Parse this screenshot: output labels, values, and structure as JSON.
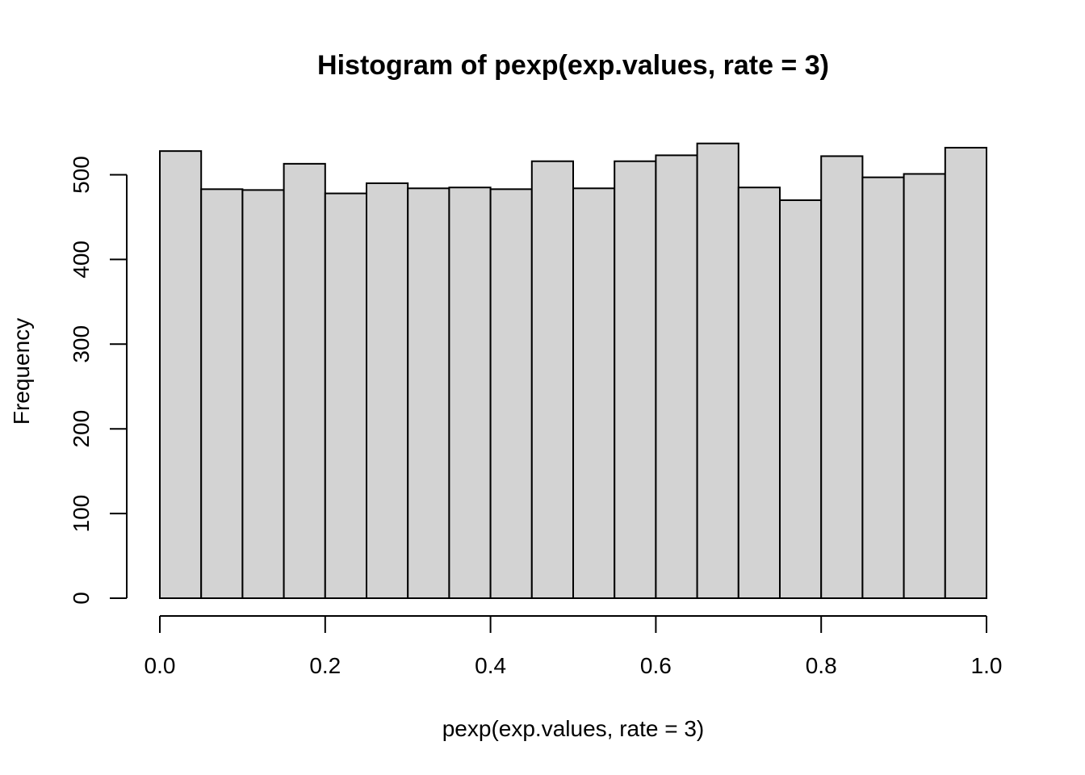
{
  "chart_data": {
    "type": "bar",
    "title": "Histogram of pexp(exp.values, rate = 3)",
    "xlabel": "pexp(exp.values, rate = 3)",
    "ylabel": "Frequency",
    "bin_edges": [
      0.0,
      0.05,
      0.1,
      0.15,
      0.2,
      0.25,
      0.3,
      0.35,
      0.4,
      0.45,
      0.5,
      0.55,
      0.6,
      0.65,
      0.7,
      0.75,
      0.8,
      0.85,
      0.9,
      0.95,
      1.0
    ],
    "values": [
      528,
      483,
      482,
      513,
      478,
      490,
      484,
      485,
      483,
      516,
      484,
      516,
      523,
      537,
      485,
      470,
      522,
      497,
      501,
      532
    ],
    "xlim": [
      0,
      1
    ],
    "ylim": [
      0,
      540
    ],
    "x_ticks": [
      0.0,
      0.2,
      0.4,
      0.6,
      0.8,
      1.0
    ],
    "x_tick_labels": [
      "0.0",
      "0.2",
      "0.4",
      "0.6",
      "0.8",
      "1.0"
    ],
    "y_ticks": [
      0,
      100,
      200,
      300,
      400,
      500
    ],
    "y_tick_labels": [
      "0",
      "100",
      "200",
      "300",
      "400",
      "500"
    ],
    "grid": false,
    "bar_color": "#d3d3d3",
    "edge_color": "#000000"
  }
}
